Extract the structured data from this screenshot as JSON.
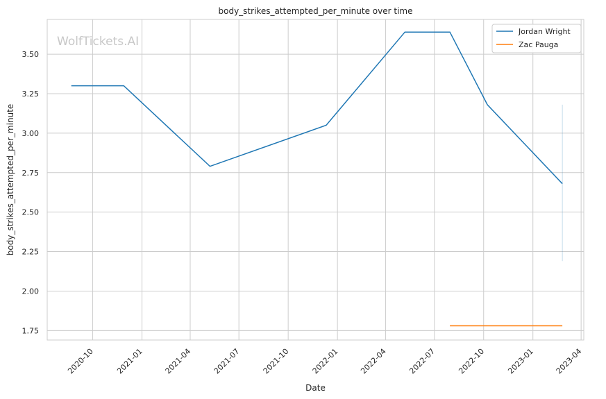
{
  "watermark": "WolfTickets.AI",
  "chart_data": {
    "type": "line",
    "title": "body_strikes_attempted_per_minute over time",
    "xlabel": "Date",
    "ylabel": "body_strikes_attempted_per_minute",
    "x_ticks": [
      "2020-10",
      "2021-01",
      "2021-04",
      "2021-07",
      "2021-10",
      "2022-01",
      "2022-04",
      "2022-07",
      "2022-10",
      "2023-01",
      "2023-04"
    ],
    "y_ticks": [
      "1.75",
      "2.00",
      "2.25",
      "2.50",
      "2.75",
      "3.00",
      "3.25",
      "3.50"
    ],
    "xlim": [
      "2020-07-08",
      "2023-04-06"
    ],
    "ylim": [
      1.69,
      3.72
    ],
    "grid": true,
    "legend_position": "top-right",
    "series": [
      {
        "name": "Jordan Wright",
        "color": "#1f77b4",
        "points": [
          {
            "x": "2020-08-22",
            "y": 3.3
          },
          {
            "x": "2020-11-28",
            "y": 3.3
          },
          {
            "x": "2021-05-08",
            "y": 2.79
          },
          {
            "x": "2021-12-11",
            "y": 3.05
          },
          {
            "x": "2022-05-07",
            "y": 3.64
          },
          {
            "x": "2022-07-30",
            "y": 3.64
          },
          {
            "x": "2022-10-08",
            "y": 3.18
          },
          {
            "x": "2023-02-25",
            "y": 2.68
          }
        ],
        "error_band": {
          "x": "2023-02-25",
          "low": 2.19,
          "high": 3.18
        }
      },
      {
        "name": "Zac Pauga",
        "color": "#ff7f0e",
        "points": [
          {
            "x": "2022-07-30",
            "y": 1.78
          },
          {
            "x": "2023-02-25",
            "y": 1.78
          }
        ]
      }
    ]
  }
}
